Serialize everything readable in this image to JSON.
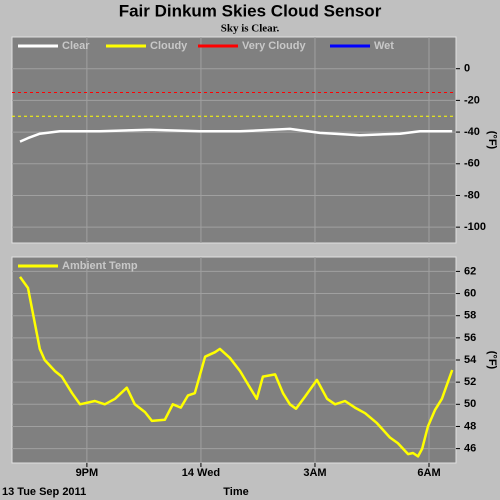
{
  "title": "Fair Dinkum Skies Cloud Sensor",
  "subtitle": "Sky is Clear.",
  "chart_data": [
    {
      "type": "line",
      "ylabel": "(°F)",
      "ylim": [
        -110,
        20
      ],
      "yticks": [
        0,
        -20,
        -40,
        -60,
        -80,
        -100
      ],
      "xlim": [
        19.03,
        30.71
      ],
      "xticks": [
        21,
        24,
        27,
        30
      ],
      "grid": true,
      "x": [
        19.24,
        19.45,
        19.76,
        20.29,
        21.34,
        22.66,
        23.97,
        25.03,
        26.34,
        27.13,
        28.18,
        29.24,
        29.76,
        30.61
      ],
      "series": [
        {
          "name": "Clear",
          "color": "#ffffff",
          "values": [
            -46,
            -43.8,
            -41,
            -39.5,
            -39.5,
            -38.5,
            -39.5,
            -39.5,
            -38,
            -40.5,
            -42,
            -41,
            -39.5,
            -39.5
          ]
        },
        {
          "name": "Cloudy",
          "color": "#ffff00",
          "threshold": -30
        },
        {
          "name": "Very Cloudy",
          "color": "#ff0000",
          "threshold": -15
        },
        {
          "name": "Wet",
          "color": "#0000ff"
        }
      ]
    },
    {
      "type": "line",
      "ylabel": "(°F)",
      "xlabel": "Time",
      "date_label": "13 Tue Sep 2011",
      "ylim": [
        44.7,
        63.3
      ],
      "yticks": [
        62,
        60,
        58,
        56,
        54,
        52,
        50,
        48,
        46
      ],
      "xlim": [
        19.03,
        30.71
      ],
      "xticks": [
        {
          "value": 21,
          "label": "9PM"
        },
        {
          "value": 24,
          "label": "14 Wed"
        },
        {
          "value": 27,
          "label": "3AM"
        },
        {
          "value": 30,
          "label": "6AM"
        }
      ],
      "grid": true,
      "x": [
        19.24,
        19.45,
        19.76,
        19.89,
        20.16,
        20.34,
        20.61,
        20.82,
        21.21,
        21.47,
        21.74,
        22.05,
        22.26,
        22.53,
        22.71,
        23.05,
        23.26,
        23.47,
        23.66,
        23.84,
        24.11,
        24.37,
        24.5,
        24.76,
        25.03,
        25.29,
        25.47,
        25.63,
        25.95,
        26.16,
        26.34,
        26.5,
        26.74,
        27.05,
        27.32,
        27.53,
        27.79,
        28.05,
        28.32,
        28.63,
        28.97,
        29.18,
        29.45,
        29.58,
        29.71,
        29.82,
        29.97,
        30.16,
        30.34,
        30.61
      ],
      "series": [
        {
          "name": "Ambient Temp",
          "color": "#ffff00",
          "values": [
            61.5,
            60.5,
            55,
            54,
            53,
            52.5,
            51,
            50,
            50.3,
            50,
            50.5,
            51.5,
            50,
            49.3,
            48.5,
            48.6,
            50,
            49.7,
            50.8,
            51,
            54.3,
            54.7,
            55,
            54.2,
            53,
            51.5,
            50.5,
            52.5,
            52.7,
            51,
            50,
            49.6,
            50.7,
            52.2,
            50.5,
            50,
            50.3,
            49.7,
            49.2,
            48.3,
            47,
            46.5,
            45.5,
            45.6,
            45.3,
            46,
            48,
            49.5,
            50.5,
            53.1
          ]
        }
      ]
    }
  ]
}
